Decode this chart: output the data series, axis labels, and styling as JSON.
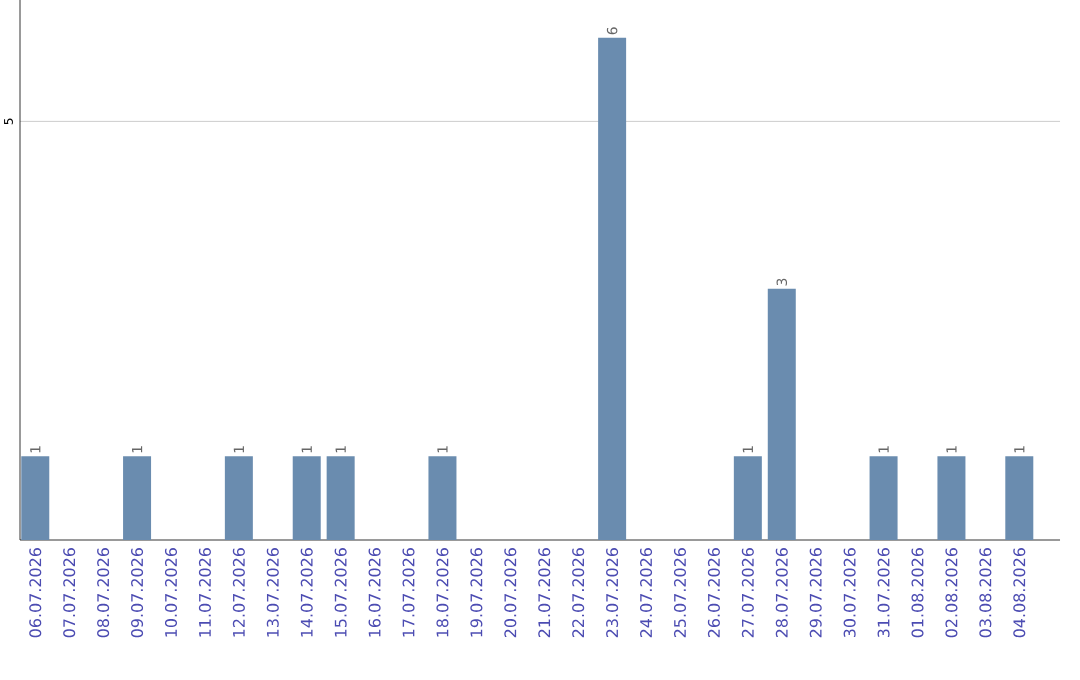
{
  "chart_data": {
    "type": "bar",
    "categories": [
      "06.07.2026",
      "07.07.2026",
      "08.07.2026",
      "09.07.2026",
      "10.07.2026",
      "11.07.2026",
      "12.07.2026",
      "13.07.2026",
      "14.07.2026",
      "15.07.2026",
      "16.07.2026",
      "17.07.2026",
      "18.07.2026",
      "19.07.2026",
      "20.07.2026",
      "21.07.2026",
      "22.07.2026",
      "23.07.2026",
      "24.07.2026",
      "25.07.2026",
      "26.07.2026",
      "27.07.2026",
      "28.07.2026",
      "29.07.2026",
      "30.07.2026",
      "31.07.2026",
      "01.08.2026",
      "02.08.2026",
      "03.08.2026",
      "04.08.2026"
    ],
    "values": [
      1,
      0,
      0,
      1,
      0,
      0,
      1,
      0,
      1,
      1,
      0,
      0,
      1,
      0,
      0,
      0,
      0,
      6,
      0,
      0,
      0,
      1,
      3,
      0,
      0,
      1,
      0,
      1,
      0,
      1
    ],
    "value_labels": [
      "1",
      null,
      null,
      "1",
      null,
      null,
      "1",
      null,
      "1",
      "1",
      null,
      null,
      "1",
      null,
      null,
      null,
      null,
      "6",
      null,
      null,
      null,
      "1",
      "3",
      null,
      null,
      "1",
      null,
      "1",
      null,
      "1"
    ],
    "color": "#6a8caf",
    "ylim": [
      0,
      6.45
    ],
    "yticks": [
      5
    ],
    "grid": "y"
  }
}
